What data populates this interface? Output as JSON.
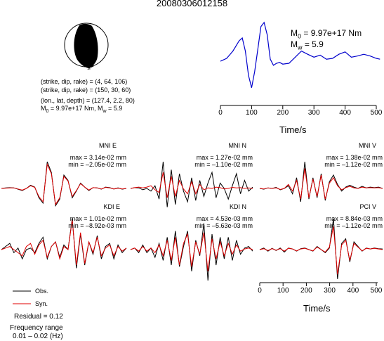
{
  "event_id": "20080306012158",
  "focal": {
    "line1": "(strike, dip, rake) = (4, 64, 106)",
    "line2": "(strike, dip, rake) = (150, 30, 60)",
    "line3": "(lon., lat, depth) = (127.4, 2.2, 80)",
    "moment_prefix": "M",
    "moment_sub": "0",
    "moment_value": " = 9.97e+17 Nm, M",
    "mw_sub": "w",
    "mw_value": " = 5.9"
  },
  "stf": {
    "m0_label": "M",
    "m0_sub": "0",
    "m0_value": " = 9.97e+17 Nm",
    "mw_label": "M",
    "mw_sub": "w",
    "mw_value": " = 5.9",
    "xlabel": "Time/s",
    "xticks": [
      "0",
      "100",
      "200",
      "300",
      "400",
      "500"
    ]
  },
  "bottom_axis": {
    "xlabel": "Time/s",
    "xticks": [
      "0",
      "100",
      "200",
      "300",
      "400",
      "500"
    ]
  },
  "legend": {
    "obs": "Obs.",
    "syn": "Syn.",
    "residual": "Residual = 0.12",
    "freq_title": "Frequency range",
    "freq_value": "0.01 – 0.02 (Hz)"
  },
  "colors": {
    "obs": "#000000",
    "syn": "#e00000",
    "stf": "#0000cc"
  },
  "panels": [
    {
      "station": "MNI E",
      "max": "max = 3.14e-02 mm",
      "min": "min = –2.05e-02 mm"
    },
    {
      "station": "MNI N",
      "max": "max = 1.27e-02 mm",
      "min": "min = –1.10e-02 mm"
    },
    {
      "station": "MNI V",
      "max": "max = 1.38e-02 mm",
      "min": "min = –1.12e-02 mm"
    },
    {
      "station": "KDI E",
      "max": "max = 1.01e-02 mm",
      "min": "min = –8.92e-03 mm"
    },
    {
      "station": "KDI N",
      "max": "max = 4.53e-03 mm",
      "min": "min = –5.63e-03 mm"
    },
    {
      "station": "PCI V",
      "max": "max = 8.84e-03 mm",
      "min": "min = –1.12e-02 mm"
    }
  ],
  "chart_data": [
    {
      "type": "line",
      "name": "source time function",
      "xlabel": "Time/s",
      "xlim": [
        0,
        512
      ],
      "x": [
        0,
        20,
        40,
        60,
        70,
        80,
        90,
        100,
        110,
        120,
        130,
        140,
        150,
        160,
        170,
        180,
        190,
        200,
        220,
        240,
        260,
        280,
        300,
        320,
        340,
        360,
        380,
        400,
        420,
        440,
        460,
        480,
        500,
        512
      ],
      "y": [
        0.05,
        0.12,
        0.3,
        0.55,
        0.62,
        0.3,
        -0.3,
        -0.6,
        -0.2,
        0.35,
        0.9,
        1.0,
        0.7,
        0.1,
        -0.05,
        0.0,
        0.02,
        -0.02,
        0.0,
        0.15,
        0.3,
        0.22,
        0.15,
        0.2,
        0.1,
        0.12,
        0.22,
        0.28,
        0.15,
        0.18,
        0.22,
        0.18,
        0.12,
        0.1
      ]
    },
    {
      "type": "line",
      "name": "MNI E",
      "series": [
        {
          "name": "Obs.",
          "y": [
            0,
            0.02,
            0.03,
            0.02,
            -0.03,
            -0.08,
            0.0,
            0.12,
            0.05,
            -0.35,
            -0.55,
            1.0,
            0.6,
            -0.65,
            -0.4,
            0.5,
            0.3,
            -0.35,
            -0.1,
            0.2,
            0.05,
            -0.08,
            0.03,
            0.02,
            -0.03,
            0.05,
            0.03,
            -0.02,
            0.02,
            -0.03,
            0.0
          ]
        },
        {
          "name": "Syn.",
          "y": [
            0,
            0.01,
            0.02,
            0.02,
            -0.02,
            -0.06,
            0.0,
            0.1,
            0.04,
            -0.3,
            -0.5,
            0.9,
            0.55,
            -0.6,
            -0.35,
            0.45,
            0.28,
            -0.3,
            -0.08,
            0.18,
            0.05,
            -0.06,
            0.03,
            0.02,
            -0.02,
            0.04,
            0.02,
            -0.02,
            0.01,
            -0.02,
            0.0
          ]
        }
      ]
    },
    {
      "type": "line",
      "name": "MNI N",
      "series": [
        {
          "name": "Obs.",
          "y": [
            0,
            0.03,
            0.02,
            -0.05,
            0.0,
            -0.1,
            0.1,
            -0.4,
            1.0,
            -0.7,
            0.7,
            -0.6,
            0.55,
            -0.1,
            -0.5,
            0.4,
            -0.45,
            0.3,
            -0.3,
            0.2,
            0.6,
            -0.35,
            0.2,
            0.0,
            -0.4,
            0.1,
            0.55,
            -0.2,
            0.3,
            -0.1,
            0.05
          ]
        },
        {
          "name": "Syn.",
          "y": [
            0,
            0.03,
            0.05,
            0.02,
            0.05,
            0.1,
            -0.05,
            -0.15,
            0.6,
            -0.35,
            0.45,
            -0.3,
            0.3,
            -0.02,
            -0.2,
            0.25,
            -0.2,
            0.15,
            -0.05,
            0.02,
            0.0,
            0.05,
            0.03,
            -0.02,
            0.0,
            0.04,
            0.02,
            0.03,
            0.0,
            0.02,
            0.0
          ]
        }
      ]
    },
    {
      "type": "line",
      "name": "MNI V",
      "series": [
        {
          "name": "Obs.",
          "y": [
            0,
            -0.03,
            0.02,
            0.0,
            0.04,
            -0.05,
            0.0,
            0.1,
            -0.2,
            0.4,
            -0.5,
            1.0,
            -0.4,
            0.4,
            -0.35,
            0.55,
            -0.45,
            0.25,
            0.5,
            0.15,
            -0.1,
            0.05,
            0.12,
            0.05,
            0.0,
            0.08,
            0.02,
            0.05,
            0.03,
            0.05,
            0.0
          ]
        },
        {
          "name": "Syn.",
          "y": [
            0,
            -0.02,
            0.02,
            0.0,
            0.02,
            -0.04,
            0.0,
            0.15,
            -0.1,
            0.3,
            -0.4,
            0.75,
            -0.35,
            0.35,
            -0.3,
            0.5,
            -0.4,
            0.2,
            0.4,
            0.1,
            -0.05,
            0.03,
            0.08,
            0.02,
            0.0,
            0.05,
            0.02,
            0.03,
            0.02,
            0.03,
            0.0
          ]
        }
      ]
    },
    {
      "type": "line",
      "name": "KDI E",
      "series": [
        {
          "name": "Obs.",
          "y": [
            0,
            0.1,
            0.2,
            -0.1,
            0.05,
            -0.3,
            0.0,
            0.05,
            -0.1,
            0.2,
            0.4,
            -0.3,
            0.1,
            0.25,
            -0.25,
            0.15,
            0.0,
            1.0,
            -0.6,
            0.5,
            -0.5,
            0.25,
            -0.15,
            0.45,
            -0.3,
            0.1,
            0.2,
            -0.3,
            0.15,
            -0.1,
            0.05
          ]
        },
        {
          "name": "Syn.",
          "y": [
            0,
            0.05,
            0.1,
            0.0,
            -0.1,
            -0.2,
            0.1,
            0.2,
            -0.15,
            0.15,
            0.3,
            -0.25,
            0.1,
            0.25,
            -0.3,
            0.1,
            0.0,
            0.95,
            -0.5,
            0.55,
            -0.45,
            0.25,
            -0.1,
            0.4,
            -0.2,
            0.05,
            0.15,
            -0.2,
            0.1,
            -0.05,
            0.05
          ]
        }
      ]
    },
    {
      "type": "line",
      "name": "KDI N",
      "series": [
        {
          "name": "Obs.",
          "y": [
            0,
            0.05,
            -0.1,
            0.15,
            -0.1,
            0.05,
            -0.25,
            0.2,
            -0.35,
            0.4,
            -0.5,
            0.6,
            -0.55,
            0.1,
            0.6,
            -0.7,
            0.3,
            -0.2,
            0.85,
            -1.0,
            0.5,
            -0.5,
            0.4,
            -0.3,
            0.4,
            -0.35,
            0.3,
            -0.15,
            0.05,
            0.1,
            -0.05
          ]
        },
        {
          "name": "Syn.",
          "y": [
            0,
            0.05,
            -0.05,
            0.1,
            -0.05,
            0.05,
            -0.1,
            0.15,
            -0.2,
            0.3,
            -0.35,
            0.4,
            -0.5,
            0.2,
            0.5,
            -0.55,
            0.25,
            -0.15,
            0.55,
            -0.7,
            0.35,
            -0.3,
            0.25,
            -0.2,
            0.2,
            -0.15,
            0.15,
            -0.05,
            0.02,
            0.05,
            0.0
          ]
        }
      ]
    },
    {
      "type": "line",
      "name": "PCI V",
      "series": [
        {
          "name": "Obs.",
          "y": [
            0,
            0.05,
            -0.05,
            0.04,
            -0.03,
            0.05,
            -0.08,
            0.05,
            0.02,
            -0.05,
            0.03,
            0.05,
            0.0,
            -0.05,
            0.1,
            0.0,
            -0.1,
            0.05,
            1.0,
            -0.95,
            0.2,
            0.35,
            -0.4,
            0.25,
            0.1,
            -0.05,
            0.05,
            0.02,
            0.05,
            0.03,
            0.02
          ]
        },
        {
          "name": "Syn.",
          "y": [
            0,
            0.03,
            -0.03,
            0.03,
            -0.02,
            0.03,
            -0.05,
            0.04,
            0.02,
            -0.04,
            0.02,
            0.04,
            0.0,
            -0.04,
            0.08,
            0.0,
            -0.08,
            0.08,
            0.75,
            -0.8,
            0.15,
            0.3,
            -0.35,
            0.2,
            0.08,
            -0.04,
            0.04,
            0.02,
            0.04,
            0.02,
            0.0
          ]
        }
      ]
    }
  ]
}
